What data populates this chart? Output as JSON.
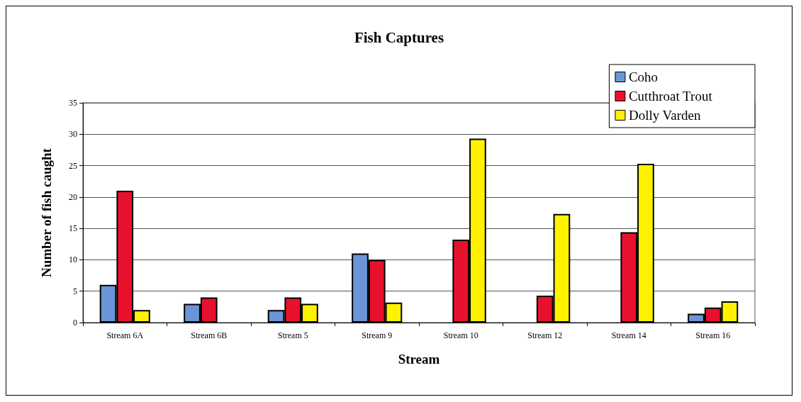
{
  "chart_data": {
    "type": "bar",
    "title": "Fish Captures",
    "xlabel": "Stream",
    "ylabel": "Number of fish caught",
    "categories": [
      "Stream 6A",
      "Stream 6B",
      "Stream 5",
      "Stream 9",
      "Stream 10",
      "Stream 12",
      "Stream 14",
      "Stream 16"
    ],
    "series": [
      {
        "name": "Coho",
        "color": "#6a95d8",
        "values": [
          6,
          3,
          2,
          11,
          null,
          null,
          null,
          1.4
        ]
      },
      {
        "name": "Cutthroat Trout",
        "color": "#e8112d",
        "values": [
          21,
          4,
          4,
          10,
          13.2,
          4.3,
          14.4,
          2.4
        ]
      },
      {
        "name": "Dolly Varden",
        "color": "#fff200",
        "values": [
          2,
          null,
          3,
          3.2,
          29.3,
          17.3,
          25.3,
          3.4
        ]
      }
    ],
    "ylim": [
      0,
      35
    ],
    "yticks": [
      0,
      5,
      10,
      15,
      20,
      25,
      30,
      35
    ],
    "grid": "y",
    "legend": "top right"
  }
}
